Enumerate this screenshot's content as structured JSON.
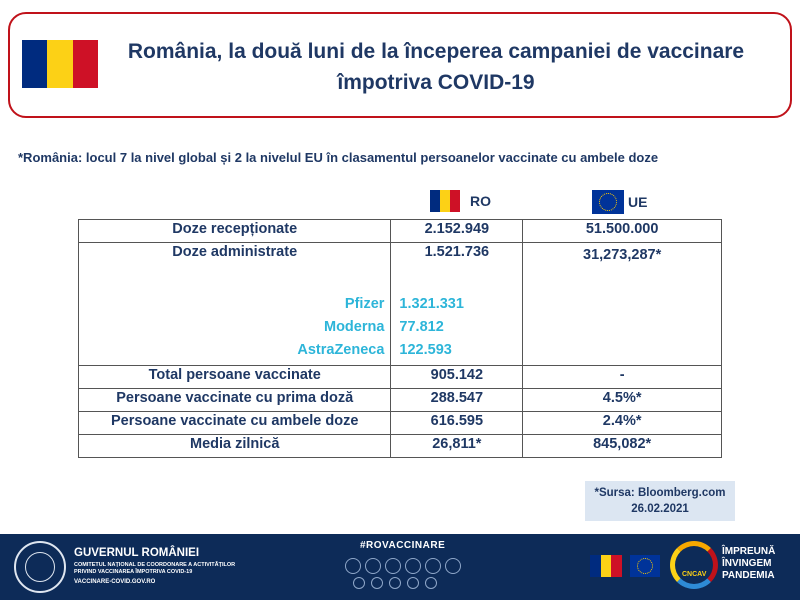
{
  "title": {
    "line1": "România, la două luni de la începerea campaniei de vaccinare",
    "line2": "împotriva COVID-19"
  },
  "note": "*România: locul 7 la nivel global și 2 la nivelul EU în clasamentul  persoanelor vaccinate cu ambele doze",
  "columns": {
    "ro": "RO",
    "ue": "UE"
  },
  "table": {
    "received": {
      "label": "Doze recepționate",
      "ro": "2.152.949",
      "ue": "51.500.000"
    },
    "administered": {
      "label": "Doze administrate",
      "ro": "1.521.736",
      "ue": "31,273,287*"
    },
    "vaccines": [
      {
        "name": "Pfizer",
        "value": "1.321.331"
      },
      {
        "name": "Moderna",
        "value": "77.812"
      },
      {
        "name": "AstraZeneca",
        "value": "122.593"
      }
    ],
    "total": {
      "label": "Total persoane vaccinate",
      "ro": "905.142",
      "ue": "-"
    },
    "first_dose": {
      "label": "Persoane vaccinate cu prima doză",
      "ro": "288.547",
      "ue": "4.5%*"
    },
    "both_doses": {
      "label": "Persoane vaccinate cu ambele doze",
      "ro": "616.595",
      "ue": "2.4%*"
    },
    "daily": {
      "label": "Media zilnică",
      "ro": "26,811*",
      "ue": "845,082*"
    }
  },
  "source": {
    "line1": "*Sursa: Bloomberg.com",
    "line2": "26.02.2021"
  },
  "footer": {
    "gov_name": "GUVERNUL ROMÂNIEI",
    "gov_sub1": "COMITETUL NAȚIONAL DE COORDONARE A ACTIVITĂȚILOR",
    "gov_sub2": "PRIVIND VACCINAREA ÎMPOTRIVA COVID-19",
    "gov_url": "VACCINARE-COVID.GOV.RO",
    "hashtag": "#ROVACCINARE",
    "cncav": "CNCAV",
    "slogan1": "ÎMPREUNĂ",
    "slogan2": "ÎNVINGEM",
    "slogan3": "PANDEMIA"
  },
  "colors": {
    "navy": "#1f3864",
    "accent_red": "#c0121a",
    "vaccine_cyan": "#2db5d9",
    "footer_bg": "#0d2b58"
  }
}
